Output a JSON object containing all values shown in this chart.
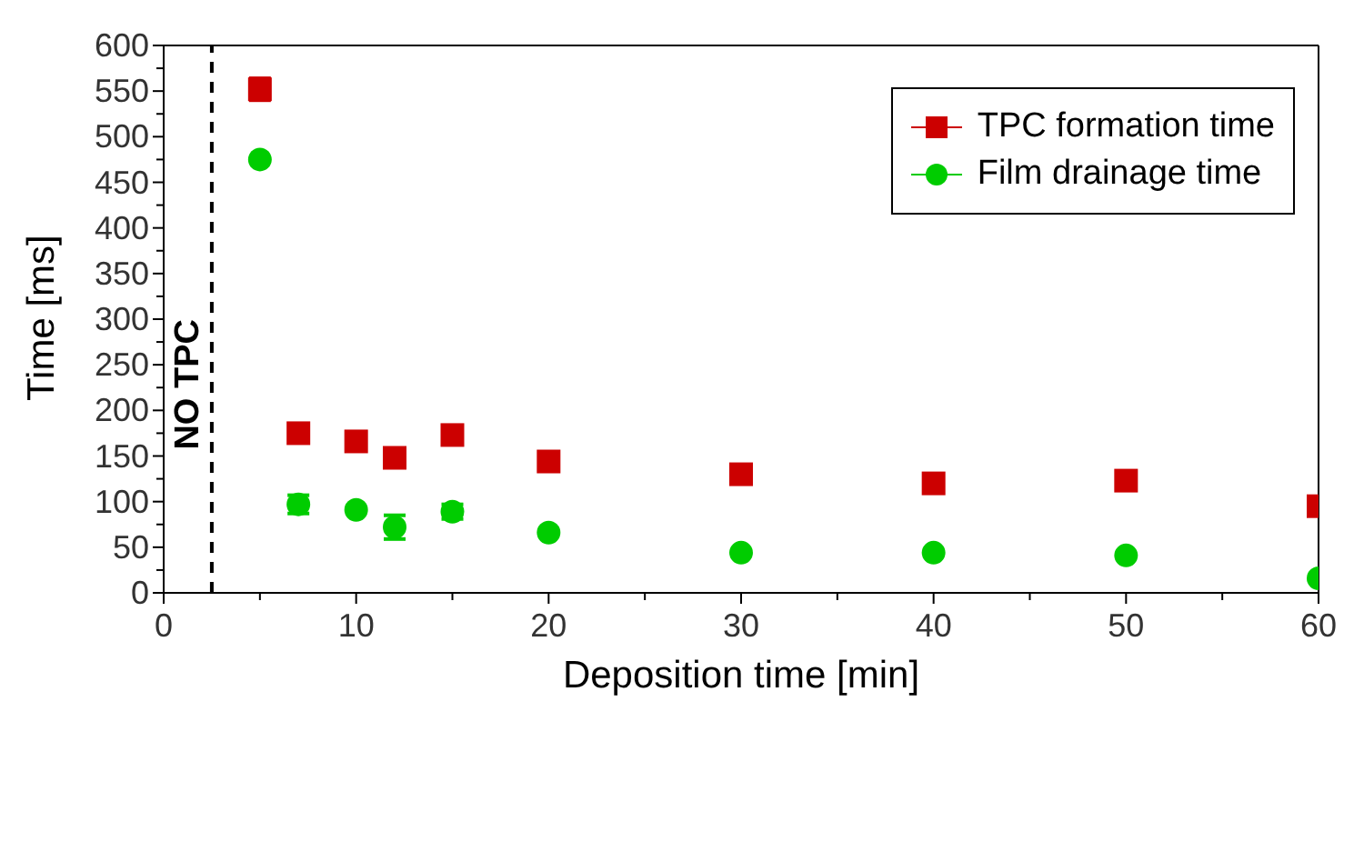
{
  "chart_data": {
    "type": "scatter",
    "xlabel": "Deposition time [min]",
    "ylabel": "Time [ms]",
    "x": [
      5,
      7,
      10,
      12,
      15,
      20,
      30,
      40,
      50,
      60
    ],
    "series": [
      {
        "name": "TPC formation time",
        "color": "#cc0000",
        "marker": "square",
        "values": [
          552,
          175,
          166,
          148,
          173,
          144,
          130,
          120,
          123,
          95
        ],
        "errors": [
          12,
          null,
          null,
          null,
          null,
          null,
          null,
          null,
          null,
          null
        ]
      },
      {
        "name": "Film drainage time",
        "color": "#00cc00",
        "marker": "circle",
        "values": [
          475,
          97,
          91,
          72,
          89,
          66,
          44,
          44,
          41,
          16
        ],
        "errors": [
          null,
          10,
          null,
          13,
          8,
          null,
          null,
          null,
          null,
          null
        ]
      }
    ],
    "xlim": [
      0,
      60
    ],
    "xticks": [
      0,
      {
        "value": 5,
        "label": null
      },
      10,
      {
        "value": 15,
        "label": null
      },
      20,
      {
        "value": 25,
        "label": null
      },
      30,
      {
        "value": 35,
        "label": null
      },
      40,
      {
        "value": 45,
        "label": null
      },
      50,
      {
        "value": 55,
        "label": null
      },
      60
    ],
    "ylim": [
      0,
      600
    ],
    "yticks": [
      0,
      {
        "value": 25,
        "label": null
      },
      50,
      {
        "value": 75,
        "label": null
      },
      100,
      {
        "value": 125,
        "label": null
      },
      150,
      {
        "value": 175,
        "label": null
      },
      200,
      {
        "value": 225,
        "label": null
      },
      250,
      {
        "value": 275,
        "label": null
      },
      300,
      {
        "value": 325,
        "label": null
      },
      350,
      {
        "value": 375,
        "label": null
      },
      400,
      {
        "value": 425,
        "label": null
      },
      450,
      {
        "value": 475,
        "label": null
      },
      500,
      {
        "value": 525,
        "label": null
      },
      550,
      {
        "value": 575,
        "label": null
      },
      600
    ],
    "ref_lines": [
      {
        "axis": "x",
        "value": 2.5,
        "label": "NO TPC",
        "color": "#000000",
        "line_style": "dashed"
      }
    ],
    "legend": "top right",
    "grid": false
  }
}
